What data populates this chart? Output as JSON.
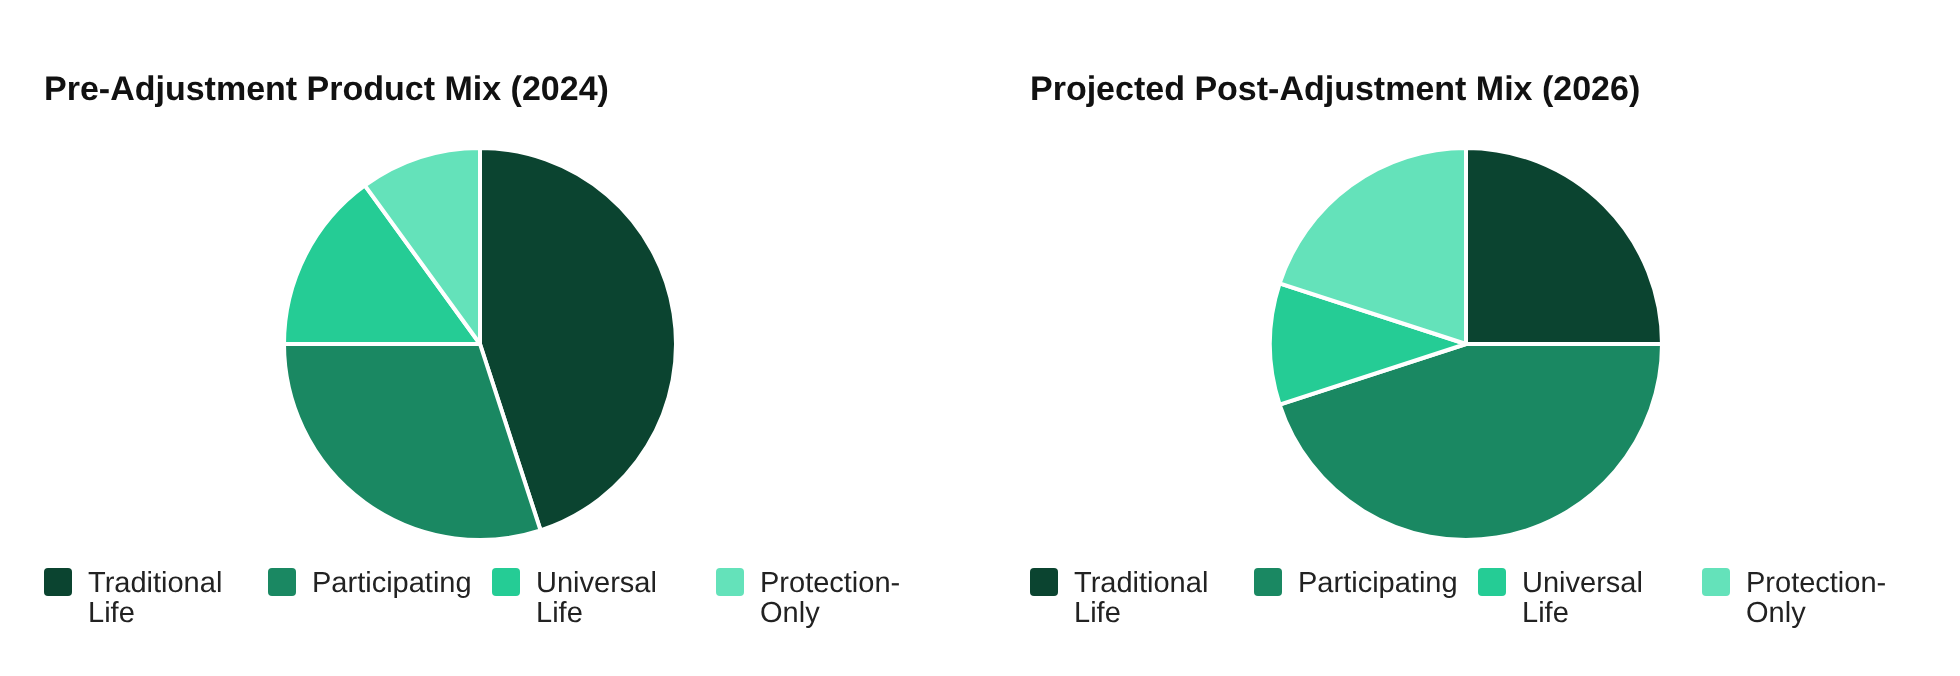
{
  "chart_data": [
    {
      "type": "pie",
      "title": "Pre-Adjustment Product Mix (2024)",
      "categories": [
        "Traditional Life",
        "Participating",
        "Universal Life",
        "Protection-Only"
      ],
      "values": [
        45,
        30,
        15,
        10
      ],
      "colors": [
        "#0b4430",
        "#1a8862",
        "#25cc95",
        "#64e2ba"
      ],
      "legend": "bottom"
    },
    {
      "type": "pie",
      "title": "Projected Post-Adjustment Mix (2026)",
      "categories": [
        "Traditional Life",
        "Participating",
        "Universal Life",
        "Protection-Only"
      ],
      "values": [
        25,
        45,
        10,
        20
      ],
      "colors": [
        "#0b4430",
        "#1a8862",
        "#25cc95",
        "#64e2ba"
      ],
      "legend": "bottom"
    }
  ]
}
